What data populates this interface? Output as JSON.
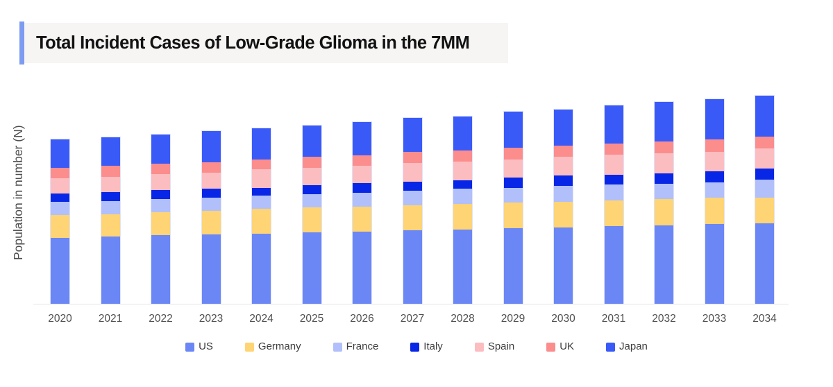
{
  "theme": {
    "accent": "#7D9BF0",
    "title-bg": "#F6F5F4",
    "axis-line": "#E4E4E4",
    "bar-border": "#DFE3F7"
  },
  "chart_data": {
    "type": "bar",
    "stacked": true,
    "title": "Total Incident Cases of Low-Grade Glioma in the 7MM",
    "xlabel": "",
    "ylabel": "Population in number (N)",
    "categories": [
      "2020",
      "2021",
      "2022",
      "2023",
      "2024",
      "2025",
      "2026",
      "2027",
      "2028",
      "2029",
      "2030",
      "2031",
      "2032",
      "2033",
      "2034"
    ],
    "series": [
      {
        "name": "US",
        "color": "#6B87F5",
        "values": [
          95,
          97,
          99,
          100,
          101,
          103,
          104,
          106,
          107,
          109,
          110,
          112,
          113,
          115,
          116
        ]
      },
      {
        "name": "Germany",
        "color": "#FED475",
        "values": [
          33,
          32,
          33,
          34,
          36,
          36,
          36,
          36,
          37,
          37,
          37,
          37,
          38,
          38,
          37
        ]
      },
      {
        "name": "France",
        "color": "#B1C0FA",
        "values": [
          19,
          19,
          19,
          19,
          19,
          19,
          20,
          21,
          22,
          21,
          23,
          23,
          22,
          22,
          26
        ]
      },
      {
        "name": "Italy",
        "color": "#0726E6",
        "values": [
          12,
          13,
          13,
          13,
          11,
          13,
          14,
          13,
          12,
          15,
          15,
          14,
          15,
          16,
          16
        ]
      },
      {
        "name": "Spain",
        "color": "#FCBDC0",
        "values": [
          22,
          22,
          23,
          23,
          27,
          25,
          25,
          27,
          27,
          26,
          27,
          29,
          29,
          28,
          29
        ]
      },
      {
        "name": "UK",
        "color": "#FC8D8D",
        "values": [
          15,
          16,
          15,
          15,
          14,
          16,
          15,
          16,
          16,
          17,
          16,
          16,
          17,
          18,
          17
        ]
      },
      {
        "name": "Japan",
        "color": "#3A5AF8",
        "values": [
          41,
          41,
          42,
          45,
          45,
          45,
          48,
          49,
          49,
          52,
          52,
          55,
          57,
          58,
          59
        ]
      }
    ],
    "units": "relative stacked height; y-axis shows no numeric tick labels",
    "stack_order_bottom_to_top": [
      "US",
      "Germany",
      "France",
      "Italy",
      "Spain",
      "UK",
      "Japan"
    ],
    "legend_position": "bottom",
    "grid": false,
    "y_tick_labels_visible": false
  }
}
